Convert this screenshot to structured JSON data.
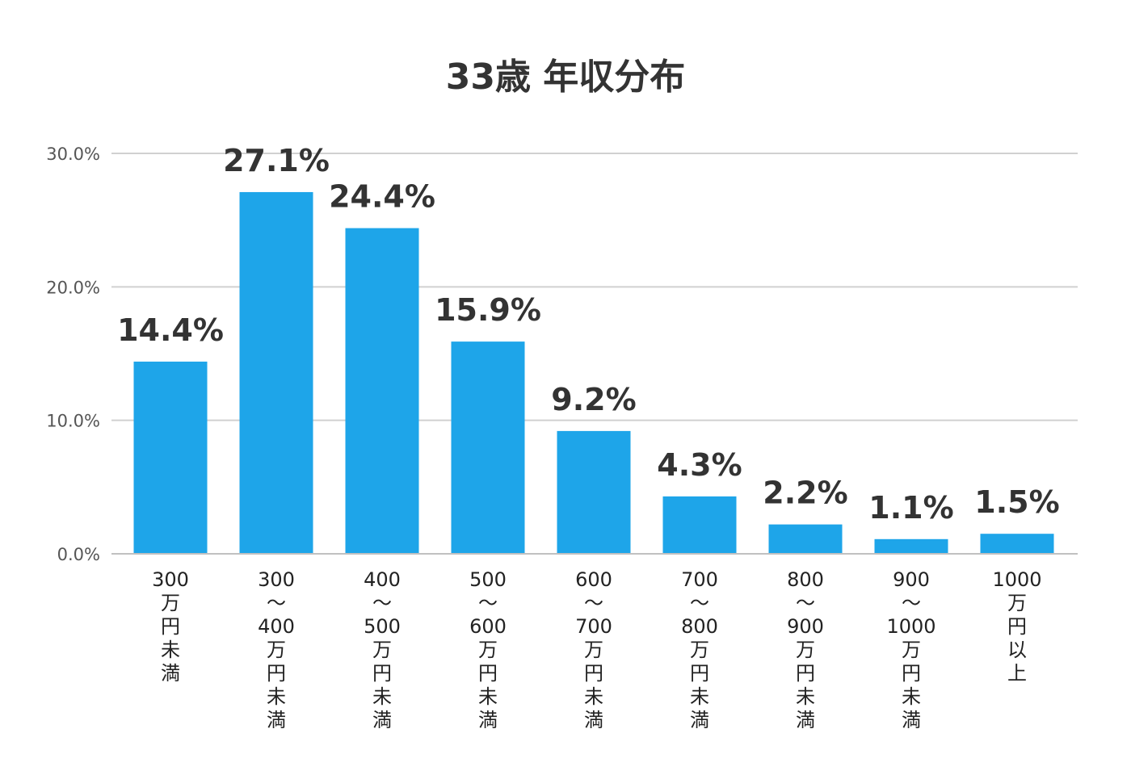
{
  "chart_data": {
    "type": "bar",
    "title": "33歳 年収分布",
    "xlabel": "",
    "ylabel": "",
    "ylim": [
      0,
      30
    ],
    "yticks": [
      0,
      10,
      20,
      30
    ],
    "ytick_labels": [
      "0.0%",
      "10.0%",
      "20.0%",
      "30.0%"
    ],
    "grid": true,
    "legend": "none",
    "bar_color": "#1ea5e9",
    "categories": [
      [
        "300",
        "万",
        "円",
        "未",
        "満"
      ],
      [
        "300",
        "～",
        "400",
        "万",
        "円",
        "未",
        "満"
      ],
      [
        "400",
        "～",
        "500",
        "万",
        "円",
        "未",
        "満"
      ],
      [
        "500",
        "～",
        "600",
        "万",
        "円",
        "未",
        "満"
      ],
      [
        "600",
        "～",
        "700",
        "万",
        "円",
        "未",
        "満"
      ],
      [
        "700",
        "～",
        "800",
        "万",
        "円",
        "未",
        "満"
      ],
      [
        "800",
        "～",
        "900",
        "万",
        "円",
        "未",
        "満"
      ],
      [
        "900",
        "～",
        "1000",
        "万",
        "円",
        "未",
        "満"
      ],
      [
        "1000",
        "万",
        "円",
        "以",
        "上"
      ]
    ],
    "values": [
      14.4,
      27.1,
      24.4,
      15.9,
      9.2,
      4.3,
      2.2,
      1.1,
      1.5
    ],
    "value_labels": [
      "14.4%",
      "27.1%",
      "24.4%",
      "15.9%",
      "9.2%",
      "4.3%",
      "2.2%",
      "1.1%",
      "1.5%"
    ]
  }
}
